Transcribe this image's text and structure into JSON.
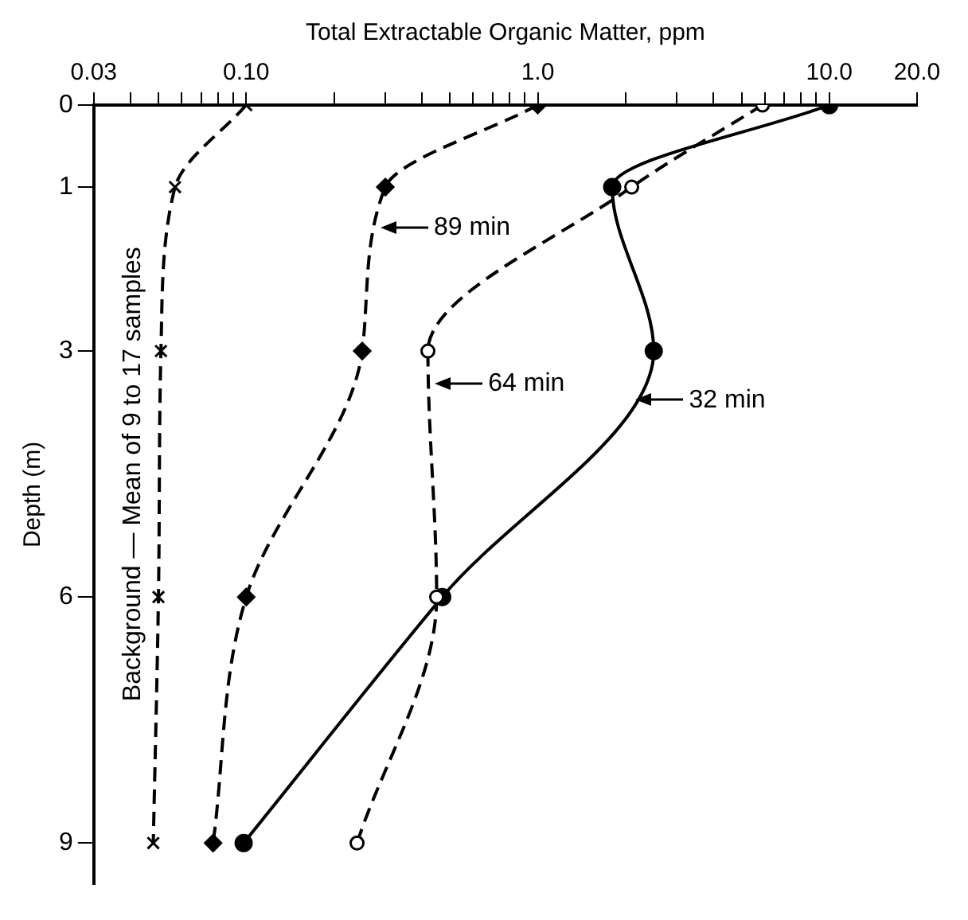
{
  "chart_data": {
    "type": "line",
    "xlabel": "Total Extractable Organic Matter, ppm",
    "ylabel": "Depth (m)",
    "log": "x",
    "grid": false,
    "legend": false,
    "xlim": [
      0.03,
      20
    ],
    "ylim": [
      9.5,
      0
    ],
    "xticks": [
      {
        "value": 0.03,
        "label": "0.03"
      },
      {
        "value": 0.04,
        "label": null
      },
      {
        "value": 0.05,
        "label": null
      },
      {
        "value": 0.06,
        "label": null
      },
      {
        "value": 0.07,
        "label": null
      },
      {
        "value": 0.08,
        "label": null
      },
      {
        "value": 0.09,
        "label": null
      },
      {
        "value": 0.1,
        "label": "0.10"
      },
      {
        "value": 0.2,
        "label": null
      },
      {
        "value": 0.3,
        "label": null
      },
      {
        "value": 0.4,
        "label": null
      },
      {
        "value": 0.5,
        "label": null
      },
      {
        "value": 0.6,
        "label": null
      },
      {
        "value": 0.7,
        "label": null
      },
      {
        "value": 0.8,
        "label": null
      },
      {
        "value": 0.9,
        "label": null
      },
      {
        "value": 1,
        "label": "1.0"
      },
      {
        "value": 2,
        "label": null
      },
      {
        "value": 3,
        "label": null
      },
      {
        "value": 4,
        "label": null
      },
      {
        "value": 5,
        "label": null
      },
      {
        "value": 6,
        "label": null
      },
      {
        "value": 7,
        "label": null
      },
      {
        "value": 8,
        "label": null
      },
      {
        "value": 9,
        "label": null
      },
      {
        "value": 10,
        "label": "10.0"
      },
      {
        "value": 20,
        "label": "20.0"
      }
    ],
    "yticks": [
      0,
      1,
      3,
      6,
      9
    ],
    "annotations": [
      {
        "text": "89 min",
        "x": 0.28,
        "y": 1.5
      },
      {
        "text": "64 min",
        "x": 0.43,
        "y": 3.4
      },
      {
        "text": "32 min",
        "x": 2.1,
        "y": 3.6
      }
    ],
    "series": [
      {
        "name": "Background — Mean of 9 to 17 samples",
        "color": "#000000",
        "marker": "cross",
        "line_style": "dashed",
        "x": [
          0.1,
          0.057,
          0.051,
          0.05,
          0.048
        ],
        "values": [
          0,
          1,
          3,
          6,
          9
        ]
      },
      {
        "color": "#000000",
        "marker": "diamond",
        "line_style": "dashed",
        "x": [
          1.0,
          0.3,
          0.25,
          0.1,
          0.077
        ],
        "values": [
          0,
          1,
          3,
          6,
          9
        ]
      },
      {
        "color": "#000000",
        "marker": "circle",
        "line_style": "dashed",
        "x": [
          5.9,
          2.1,
          0.42,
          0.45,
          0.24
        ],
        "values": [
          0,
          1,
          3,
          6,
          9
        ]
      },
      {
        "color": "#000000",
        "marker": "circle",
        "line_style": "solid",
        "x": [
          10.0,
          1.8,
          2.5,
          0.47,
          0.098
        ],
        "values": [
          0,
          1,
          3,
          6,
          9
        ]
      }
    ]
  }
}
